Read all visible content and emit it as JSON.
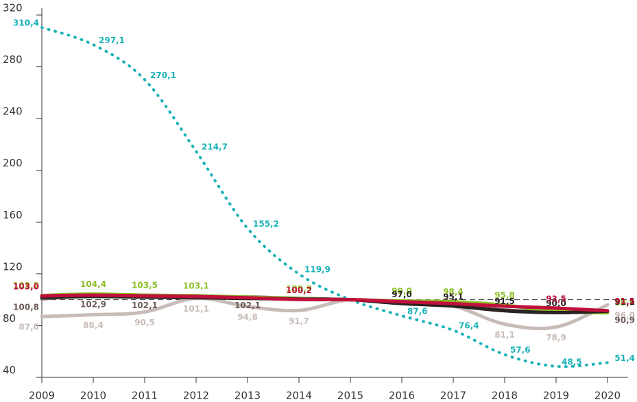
{
  "chart_data": {
    "type": "line",
    "x": [
      2009,
      2010,
      2011,
      2012,
      2013,
      2014,
      2015,
      2016,
      2017,
      2018,
      2019,
      2020
    ],
    "xlim": [
      2009,
      2020
    ],
    "xticks": [
      2009,
      2010,
      2011,
      2012,
      2013,
      2014,
      2015,
      2016,
      2017,
      2018,
      2019,
      2020
    ],
    "ylim": [
      40,
      320
    ],
    "yticks": [
      40,
      80,
      120,
      160,
      200,
      240,
      280,
      320
    ],
    "reference": 100,
    "series": [
      {
        "color": "#1ab2b8",
        "style": "dotted",
        "values": [
          310.4,
          297.1,
          270.1,
          214.7,
          155.2,
          119.9,
          100,
          87.6,
          76.4,
          57.6,
          48.5,
          51.4
        ],
        "value_labels": [
          "310,4",
          "297,1",
          "270,1",
          "214,7",
          "155,2",
          "119,9",
          null,
          "87,6",
          "76,4",
          "57,6",
          "48,5",
          "51,4"
        ]
      },
      {
        "color": "#c8bcb8",
        "values": [
          87.0,
          88.4,
          90.5,
          101.1,
          94.8,
          91.7,
          100,
          97,
          95,
          81.1,
          78.9,
          96.0
        ],
        "value_labels": [
          "87,0",
          "88,4",
          "90,5",
          "101,1",
          "94,8",
          "91,7",
          null,
          null,
          null,
          "81,1",
          "78,9",
          "96,0"
        ]
      },
      {
        "color": "#6e5c5a",
        "values": [
          100.8,
          102.9,
          102.1,
          102,
          102.1,
          101,
          100,
          97.5,
          95.5,
          92,
          90.5,
          90.9
        ],
        "value_labels": [
          "100,8",
          "102,9",
          "102,1",
          null,
          "102,1",
          null,
          null,
          null,
          null,
          null,
          null,
          "90,9"
        ]
      },
      {
        "color": "#8cbf26",
        "values": [
          103.2,
          104.4,
          103.5,
          103.1,
          102,
          100.9,
          100,
          99.0,
          98.4,
          95.8,
          91,
          89.9
        ],
        "value_labels": [
          "103,2",
          "104,4",
          "103,5",
          "103,1",
          null,
          "100,9",
          null,
          "99,0",
          "98,4",
          "95,8",
          null,
          "89,9"
        ]
      },
      {
        "color": "#2a2222",
        "values": [
          102,
          102.5,
          102,
          101.5,
          101,
          100.5,
          100,
          97.0,
          95.1,
          91.5,
          90.0,
          91.1
        ],
        "value_labels": [
          null,
          null,
          null,
          null,
          null,
          null,
          null,
          "97,0",
          "95,1",
          "91,5",
          "90,0",
          "91,1"
        ]
      },
      {
        "color": "#c0103c",
        "values": [
          103.0,
          103.5,
          103,
          102.5,
          101.5,
          100.2,
          100,
          98.5,
          97,
          95,
          93.5,
          91.5
        ],
        "value_labels": [
          "103,0",
          null,
          null,
          null,
          null,
          "100,2",
          null,
          null,
          null,
          null,
          "93,5",
          "91,5"
        ]
      }
    ]
  }
}
